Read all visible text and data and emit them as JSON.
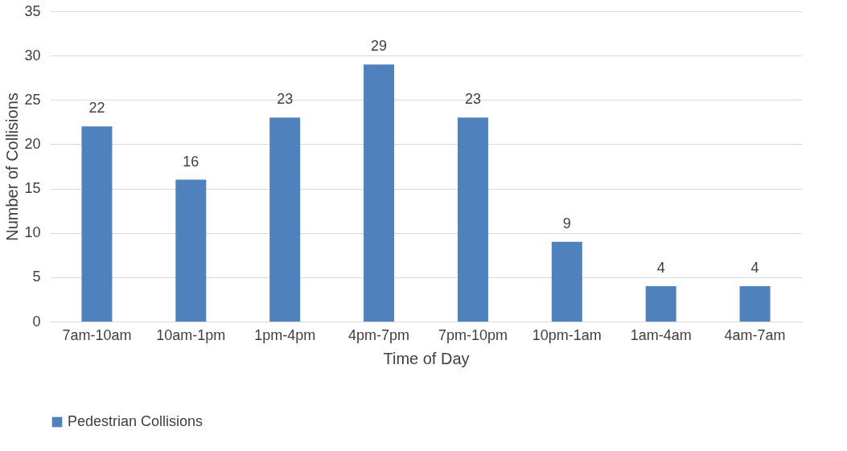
{
  "chart_data": {
    "type": "bar",
    "xlabel": "Time of Day",
    "ylabel": "Number of Collisions",
    "categories": [
      "7am-10am",
      "10am-1pm",
      "1pm-4pm",
      "4pm-7pm",
      "7pm-10pm",
      "10pm-1am",
      "1am-4am",
      "4am-7am"
    ],
    "series": [
      {
        "name": "Pedestrian Collisions",
        "color": "#4f81bd",
        "values": [
          22,
          16,
          23,
          29,
          23,
          9,
          4,
          4
        ]
      }
    ],
    "ylim": [
      0,
      35
    ],
    "yticks": [
      0,
      5,
      10,
      15,
      20,
      25,
      30,
      35
    ],
    "grid": "y",
    "legend": "bottom",
    "data_labels": true
  }
}
